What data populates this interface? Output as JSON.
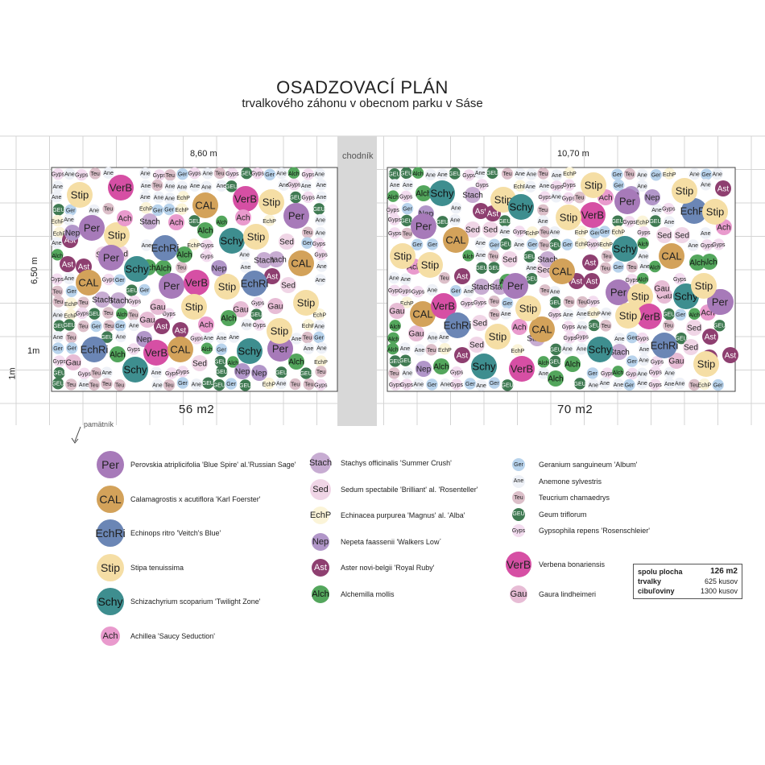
{
  "header": {
    "title": "OSADZOVACÍ PLÁN",
    "subtitle": "trvalkového záhonu v obecnom parku v Sáse"
  },
  "plan": {
    "path_label": "chodník",
    "left_width_label": "8,60 m",
    "right_width_label": "10,70 m",
    "height_label": "6,50 m",
    "grid_label_1": "1m",
    "grid_label_2": "1m",
    "left_area": "56  m2",
    "right_area": "70  m2",
    "memorial_label": "pamätník"
  },
  "species": {
    "Per": {
      "color": "#a77ab9",
      "text": "#222222"
    },
    "CAL": {
      "color": "#d3a25a",
      "text": "#222222"
    },
    "EchRi": {
      "color": "#6b86b5",
      "text": "#222222"
    },
    "Stip": {
      "color": "#f5dea5",
      "text": "#222222"
    },
    "Schy": {
      "color": "#3e8e8f",
      "text": "#111111"
    },
    "Ach": {
      "color": "#e99acd",
      "text": "#222222"
    },
    "Stach": {
      "color": "#c7acd2",
      "text": "#222222"
    },
    "Sed": {
      "color": "#f0d5e6",
      "text": "#222222"
    },
    "EchP": {
      "color": "#fbf4d8",
      "text": "#222222"
    },
    "Nep": {
      "color": "#b196c9",
      "text": "#222222"
    },
    "Ast": {
      "color": "#8e3f70",
      "text": "#ffffff"
    },
    "Alch": {
      "color": "#53a65c",
      "text": "#111111"
    },
    "Ger": {
      "color": "#b8d3ec",
      "text": "#222222"
    },
    "Ane": {
      "color": "#eef1f7",
      "text": "#222222"
    },
    "Teu": {
      "color": "#dcbfc9",
      "text": "#222222"
    },
    "GEU": {
      "color": "#3f7a52",
      "text": "#ffffff"
    },
    "Gyps": {
      "color": "#f3dcef",
      "text": "#222222"
    },
    "VerB": {
      "color": "#d64fa4",
      "text": "#222222"
    },
    "Gau": {
      "color": "#e7bcd5",
      "text": "#222222"
    }
  },
  "legend": {
    "col1": [
      {
        "code": "Per",
        "label": "Perovskia atriplicifolia 'Blue Spire' al.'Russian Sage'"
      },
      {
        "code": "CAL",
        "label": "Calamagrostis x acutiflora 'Karl Foerster'"
      },
      {
        "code": "EchRi",
        "label": "Echinops ritro 'Veitch's Blue'"
      },
      {
        "code": "Stip",
        "label": "Stipa tenuissima"
      },
      {
        "code": "Schy",
        "label": "Schizachyrium scoparium 'Twilight Zone'"
      },
      {
        "code": "Ach",
        "label": "Achillea 'Saucy Seduction'"
      }
    ],
    "col2": [
      {
        "code": "Stach",
        "label": "Stachys officinalis 'Summer Crush'"
      },
      {
        "code": "Sed",
        "label": "Sedum spectabile 'Brilliant' al. 'Rosenteller'"
      },
      {
        "code": "EchP",
        "label": "Echinacea purpurea 'Magnus' al. 'Alba'"
      },
      {
        "code": "Nep",
        "label": "Nepeta faassenii  'Walkers Low´"
      },
      {
        "code": "Ast",
        "label": "Aster novi-belgii 'Royal Ruby'"
      },
      {
        "code": "Alch",
        "label": "Alchemilla mollis"
      }
    ],
    "col3": [
      {
        "code": "Ger",
        "label": "Geranium sanguineum 'Album'"
      },
      {
        "code": "Ane",
        "label": "Anemone sylvestris"
      },
      {
        "code": "Teu",
        "label": "Teucrium chamaedrys"
      },
      {
        "code": "GEU",
        "label": "Geum triflorum"
      },
      {
        "code": "Gyps",
        "label": "Gypsophila repens 'Rosenschleier'"
      },
      {
        "code": "VerB",
        "label": "Verbena bonariensis"
      },
      {
        "code": "Gau",
        "label": "Gaura lindheimeri"
      }
    ]
  },
  "summary": {
    "area_label": "spolu plocha",
    "area_value": "126  m2",
    "perennials_label": "trvalky",
    "perennials_value": "625 kusov",
    "bulbs_label": "cibuľoviny",
    "bulbs_value": "1300 kusov"
  }
}
